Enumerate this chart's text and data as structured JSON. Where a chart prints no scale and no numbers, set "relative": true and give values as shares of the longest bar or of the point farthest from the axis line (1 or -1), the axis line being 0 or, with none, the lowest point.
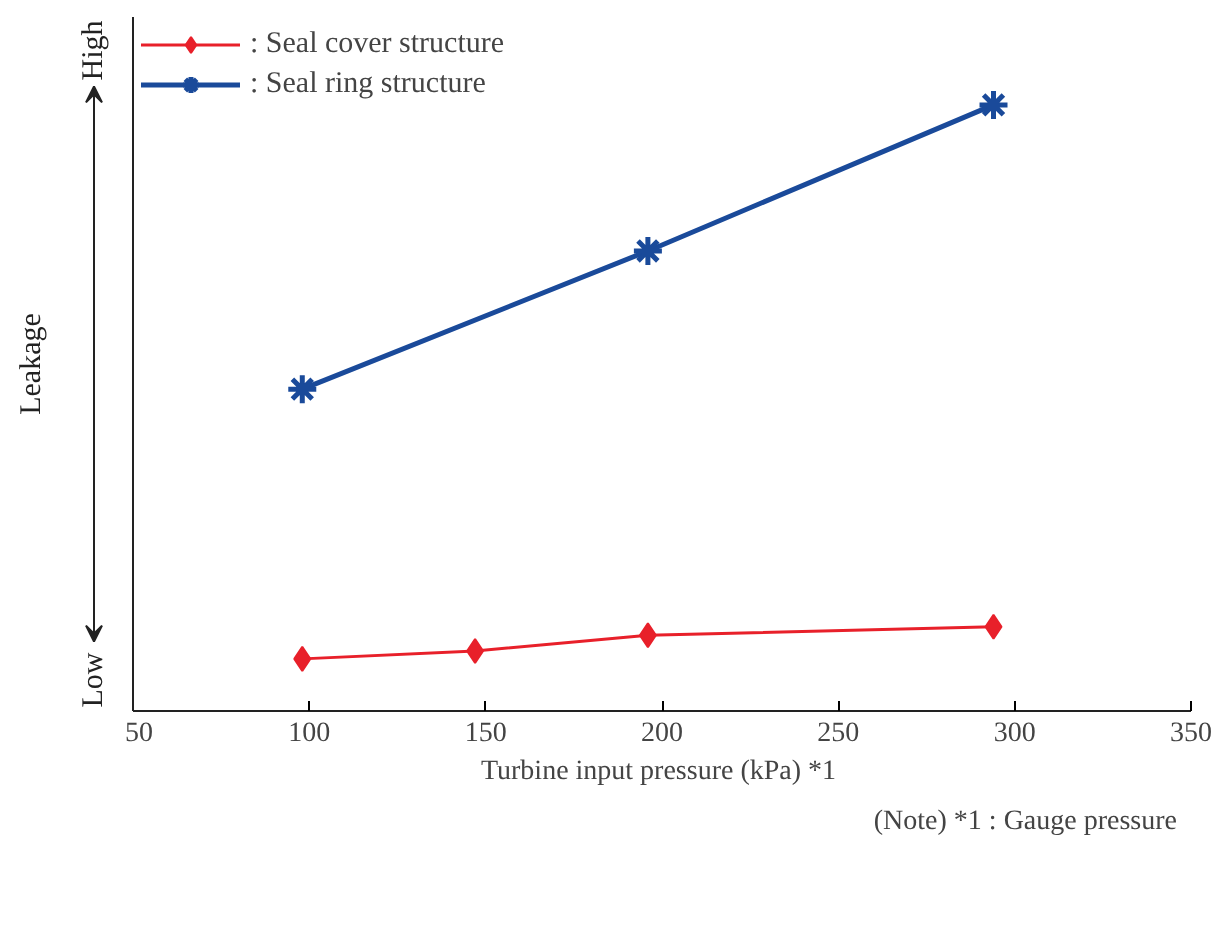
{
  "chart_data": {
    "type": "line",
    "relative": true,
    "xlabel": "Turbine input pressure  (kPa) *1",
    "ylabel": "Leakage",
    "xlim": [
      50,
      350
    ],
    "xticks": [
      50,
      100,
      150,
      200,
      250,
      300,
      350
    ],
    "annotations": [
      "High",
      "Low",
      "(Note)   *1 : Gauge pressure"
    ],
    "legend": "top left",
    "grid": false,
    "series": [
      {
        "name": ": Seal cover structure",
        "color": "#e8202a",
        "marker": "diamond",
        "x": [
          98,
          147,
          196,
          294
        ],
        "values": [
          0.086,
          0.099,
          0.125,
          0.139
        ]
      },
      {
        "name": ": Seal ring structure",
        "color": "#1a4a9a",
        "marker": "cross",
        "x": [
          98,
          196,
          294
        ],
        "values": [
          0.531,
          0.759,
          1
        ]
      }
    ]
  }
}
